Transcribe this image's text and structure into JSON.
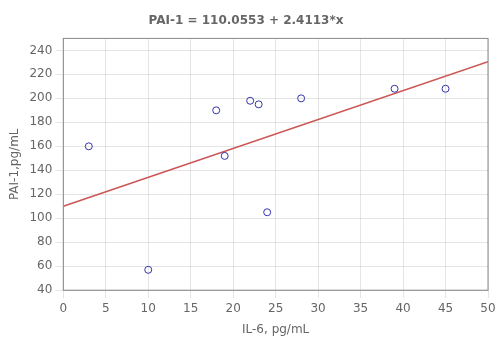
{
  "chart_data": {
    "type": "scatter",
    "title": "PAI-1 = 110.0553 + 2.4113*x",
    "xlabel": "IL-6, pg/mL",
    "ylabel": "PAI-1,pg/mL",
    "series": [
      {
        "type": "scatter",
        "color": "#3333AA",
        "marker": "circle",
        "x": [
          3,
          10,
          18,
          19,
          22,
          23,
          24,
          28,
          39,
          45
        ],
        "values": [
          160,
          57,
          190,
          152,
          198,
          195,
          105,
          200,
          208,
          208
        ]
      },
      {
        "type": "line",
        "color": "#CC5555",
        "x": [
          0,
          50
        ],
        "values": [
          110.0553,
          230.6203
        ]
      }
    ],
    "xlim": [
      0,
      50
    ],
    "ylim": [
      40,
      250
    ],
    "xticks": [
      0,
      5,
      10,
      15,
      20,
      25,
      30,
      35,
      40,
      45,
      50
    ],
    "yticks": [
      40,
      60,
      80,
      100,
      120,
      140,
      160,
      180,
      200,
      220,
      240
    ],
    "grid": true
  }
}
